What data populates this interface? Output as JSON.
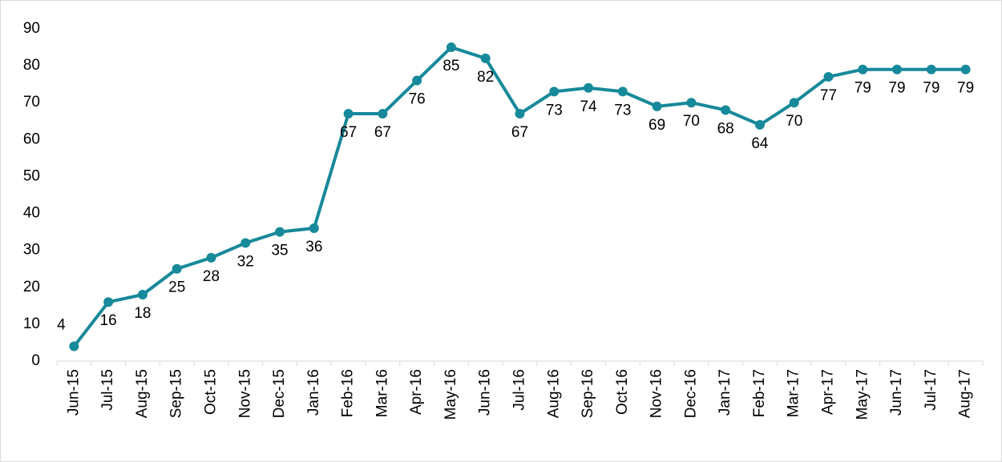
{
  "chart_data": {
    "type": "line",
    "categories": [
      "Jun-15",
      "Jul-15",
      "Aug-15",
      "Sep-15",
      "Oct-15",
      "Nov-15",
      "Dec-15",
      "Jan-16",
      "Feb-16",
      "Mar-16",
      "Apr-16",
      "May-16",
      "Jun-16",
      "Jul-16",
      "Aug-16",
      "Sep-16",
      "Oct-16",
      "Nov-16",
      "Dec-16",
      "Jan-17",
      "Feb-17",
      "Mar-17",
      "Apr-17",
      "May-17",
      "Jun-17",
      "Jul-17",
      "Aug-17"
    ],
    "values": [
      4,
      16,
      18,
      25,
      28,
      32,
      35,
      36,
      67,
      67,
      76,
      85,
      82,
      67,
      73,
      74,
      73,
      69,
      70,
      68,
      64,
      70,
      77,
      79,
      79,
      79,
      79
    ],
    "color": "#16899a",
    "ylim": [
      0,
      90
    ],
    "yticks": [
      0,
      10,
      20,
      30,
      40,
      50,
      60,
      70,
      80,
      90
    ]
  }
}
